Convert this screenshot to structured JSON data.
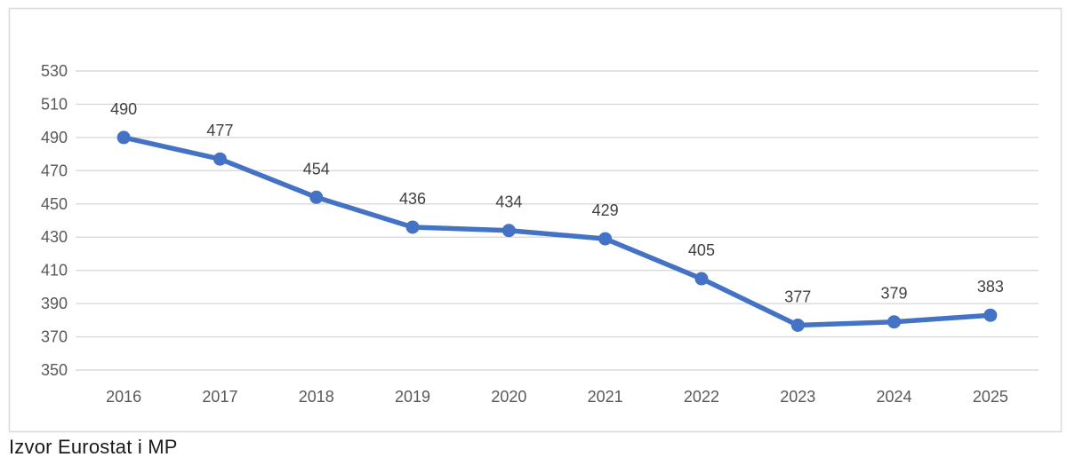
{
  "caption": "Izvor Eurostat i MP",
  "chart_data": {
    "type": "line",
    "title": "",
    "xlabel": "",
    "ylabel": "",
    "categories": [
      "2016",
      "2017",
      "2018",
      "2019",
      "2020",
      "2021",
      "2022",
      "2023",
      "2024",
      "2025"
    ],
    "series": [
      {
        "name": "series-1",
        "values": [
          490,
          477,
          454,
          436,
          434,
          429,
          405,
          377,
          379,
          383
        ]
      }
    ],
    "data_labels": [
      490,
      477,
      454,
      436,
      434,
      429,
      405,
      377,
      379,
      383
    ],
    "ylim": [
      350,
      530
    ],
    "ytick_step": 20,
    "ytick_labels": [
      "350",
      "370",
      "390",
      "410",
      "430",
      "450",
      "470",
      "490",
      "510",
      "530"
    ],
    "grid": true,
    "legend_position": "none",
    "marker": "circle",
    "colors": {
      "line": "#4472C4",
      "marker": "#4472C4",
      "gridline": "#D9D9D9",
      "chart_border": "#D9D9D9",
      "axis_label": "#595959",
      "data_label": "#404040",
      "background": "#FFFFFF"
    }
  }
}
